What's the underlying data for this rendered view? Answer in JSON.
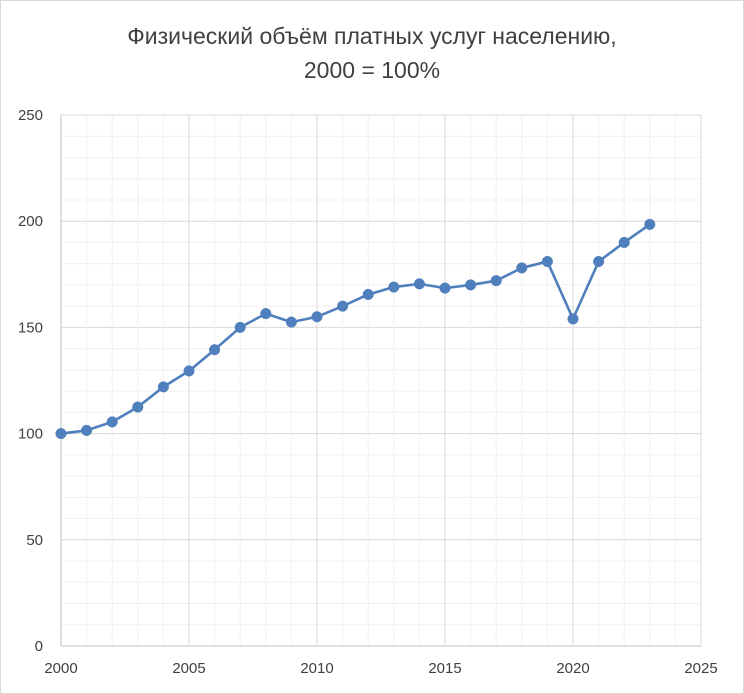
{
  "chart_data": {
    "type": "line",
    "title": "Физический объём платных услуг населению,",
    "subtitle": "2000 = 100%",
    "xlim": [
      2000,
      2025
    ],
    "ylim": [
      0,
      250
    ],
    "x_ticks": [
      "2000",
      "2005",
      "2010",
      "2015",
      "2020",
      "2025"
    ],
    "y_ticks": [
      "0",
      "50",
      "100",
      "150",
      "200",
      "250"
    ],
    "x_tick_values": [
      2000,
      2005,
      2010,
      2015,
      2020,
      2025
    ],
    "y_tick_values": [
      0,
      50,
      100,
      150,
      200,
      250
    ],
    "grid": true,
    "legend": "none",
    "series": [
      {
        "color": "#4f7fbd",
        "x": [
          2000,
          2001,
          2002,
          2003,
          2004,
          2005,
          2006,
          2007,
          2008,
          2009,
          2010,
          2011,
          2012,
          2013,
          2014,
          2015,
          2016,
          2017,
          2018,
          2019,
          2020,
          2021,
          2022,
          2023
        ],
        "y": [
          100,
          101.5,
          105.5,
          112.5,
          122,
          129.5,
          139.5,
          150,
          156.5,
          152.5,
          155,
          160,
          165.5,
          169,
          170.5,
          168.5,
          170,
          172,
          178,
          181,
          154,
          181,
          190,
          198.5
        ]
      }
    ]
  }
}
